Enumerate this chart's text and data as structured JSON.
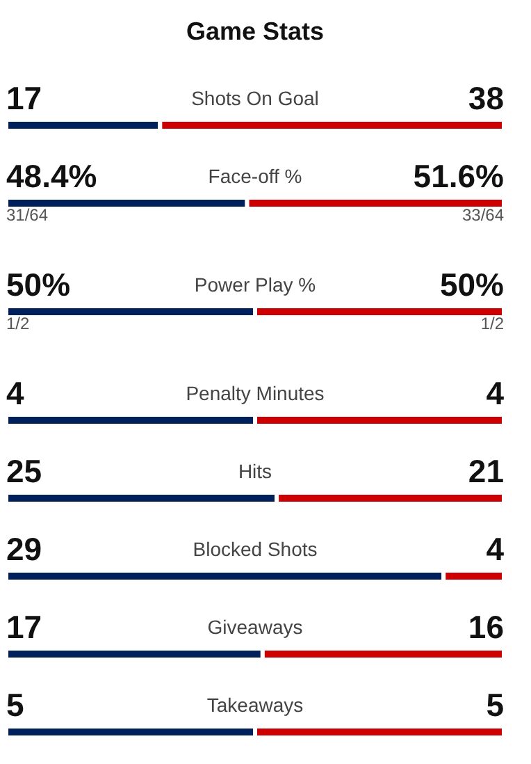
{
  "chart_data": [
    {
      "type": "bar",
      "orientation": "horizontal",
      "stacked": true,
      "title": "Game Stats",
      "categories": [
        "Shots On Goal"
      ],
      "xlim": [
        0,
        55
      ],
      "series": [
        {
          "color": "#00205b",
          "values": [
            17
          ],
          "value_labels": [
            "17"
          ]
        },
        {
          "color": "#cc0000",
          "values": [
            38
          ],
          "value_labels": [
            "38"
          ]
        }
      ]
    },
    {
      "type": "bar",
      "orientation": "horizontal",
      "stacked": true,
      "categories": [
        "Face-off %"
      ],
      "xlim": [
        0,
        100
      ],
      "annotations": [
        "31/64",
        "33/64"
      ],
      "series": [
        {
          "color": "#00205b",
          "values": [
            48.4
          ],
          "value_labels": [
            "48.4%"
          ]
        },
        {
          "color": "#cc0000",
          "values": [
            51.6
          ],
          "value_labels": [
            "51.6%"
          ]
        }
      ]
    },
    {
      "type": "bar",
      "orientation": "horizontal",
      "stacked": true,
      "categories": [
        "Power Play %"
      ],
      "xlim": [
        0,
        100
      ],
      "annotations": [
        "1/2",
        "1/2"
      ],
      "series": [
        {
          "color": "#00205b",
          "values": [
            50
          ],
          "value_labels": [
            "50%"
          ]
        },
        {
          "color": "#cc0000",
          "values": [
            50
          ],
          "value_labels": [
            "50%"
          ]
        }
      ]
    },
    {
      "type": "bar",
      "orientation": "horizontal",
      "stacked": true,
      "categories": [
        "Penalty Minutes"
      ],
      "xlim": [
        0,
        8
      ],
      "series": [
        {
          "color": "#00205b",
          "values": [
            4
          ],
          "value_labels": [
            "4"
          ]
        },
        {
          "color": "#cc0000",
          "values": [
            4
          ],
          "value_labels": [
            "4"
          ]
        }
      ]
    },
    {
      "type": "bar",
      "orientation": "horizontal",
      "stacked": true,
      "categories": [
        "Hits"
      ],
      "xlim": [
        0,
        46
      ],
      "series": [
        {
          "color": "#00205b",
          "values": [
            25
          ],
          "value_labels": [
            "25"
          ]
        },
        {
          "color": "#cc0000",
          "values": [
            21
          ],
          "value_labels": [
            "21"
          ]
        }
      ]
    },
    {
      "type": "bar",
      "orientation": "horizontal",
      "stacked": true,
      "categories": [
        "Blocked Shots"
      ],
      "xlim": [
        0,
        33
      ],
      "series": [
        {
          "color": "#00205b",
          "values": [
            29
          ],
          "value_labels": [
            "29"
          ]
        },
        {
          "color": "#cc0000",
          "values": [
            4
          ],
          "value_labels": [
            "4"
          ]
        }
      ]
    },
    {
      "type": "bar",
      "orientation": "horizontal",
      "stacked": true,
      "categories": [
        "Giveaways"
      ],
      "xlim": [
        0,
        33
      ],
      "series": [
        {
          "color": "#00205b",
          "values": [
            17
          ],
          "value_labels": [
            "17"
          ]
        },
        {
          "color": "#cc0000",
          "values": [
            16
          ],
          "value_labels": [
            "16"
          ]
        }
      ]
    },
    {
      "type": "bar",
      "orientation": "horizontal",
      "stacked": true,
      "categories": [
        "Takeaways"
      ],
      "xlim": [
        0,
        10
      ],
      "series": [
        {
          "color": "#00205b",
          "values": [
            5
          ],
          "value_labels": [
            "5"
          ]
        },
        {
          "color": "#cc0000",
          "values": [
            5
          ],
          "value_labels": [
            "5"
          ]
        }
      ]
    }
  ]
}
